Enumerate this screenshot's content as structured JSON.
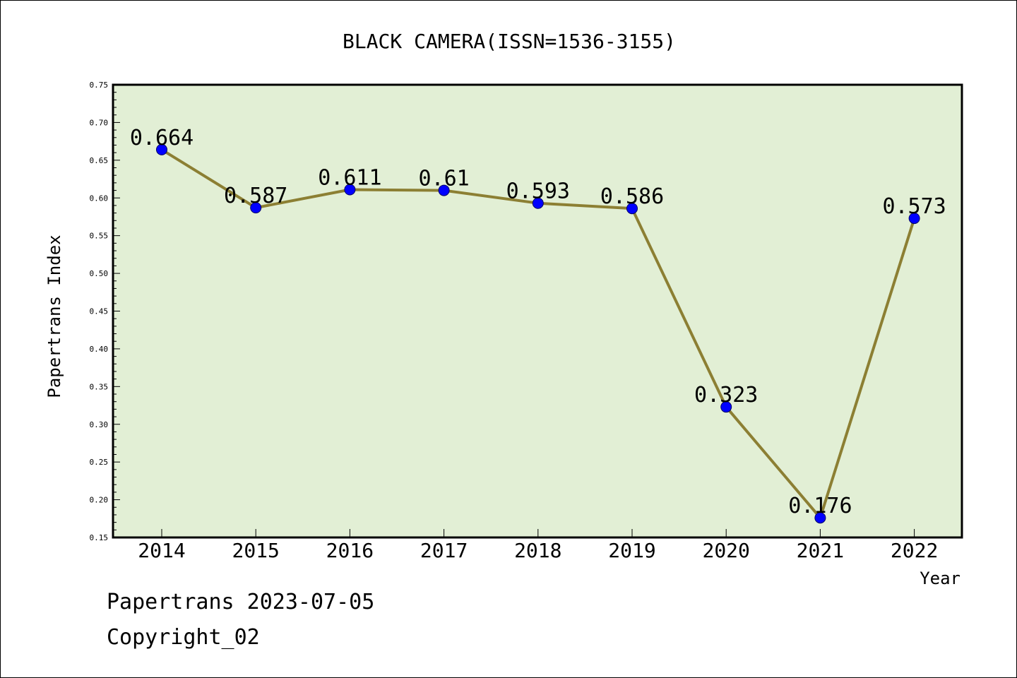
{
  "chart_data": {
    "type": "line",
    "title": "BLACK CAMERA(ISSN=1536-3155)",
    "xlabel": "Year",
    "ylabel": "Papertrans Index",
    "categories": [
      "2014",
      "2015",
      "2016",
      "2017",
      "2018",
      "2019",
      "2020",
      "2021",
      "2022"
    ],
    "series": [
      {
        "values": [
          0.664,
          0.587,
          0.611,
          0.61,
          0.593,
          0.586,
          0.323,
          0.176,
          0.573
        ],
        "labels": [
          "0.664",
          "0.587",
          "0.611",
          "0.61",
          "0.593",
          "0.586",
          "0.323",
          "0.176",
          "0.573"
        ]
      }
    ],
    "ylim": [
      0.15,
      0.75
    ],
    "yticks": [
      "0.15",
      "0.20",
      "0.25",
      "0.30",
      "0.35",
      "0.40",
      "0.45",
      "0.50",
      "0.55",
      "0.60",
      "0.65",
      "0.70",
      "0.75"
    ],
    "grid": false,
    "colors": {
      "plot_background": "#e2efd5",
      "line": "#8c7f33",
      "marker": "#0000ff"
    }
  },
  "footer": {
    "line1": "Papertrans 2023-07-05",
    "line2": "Copyright_02"
  }
}
